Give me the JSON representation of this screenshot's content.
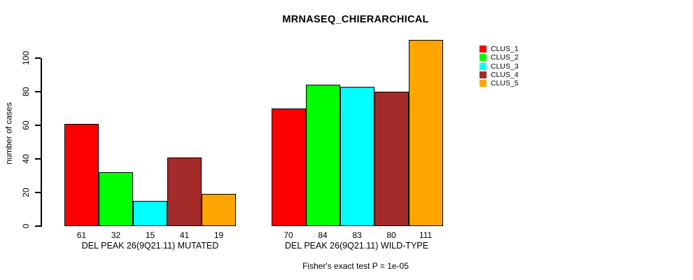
{
  "title": "MRNASEQ_CHIERARCHICAL",
  "footer": "Fisher's exact test P = 1e-05",
  "y_axis": {
    "label": "number of cases",
    "ticks": [
      0,
      20,
      40,
      60,
      80,
      100
    ]
  },
  "legend": {
    "items": [
      {
        "label": "CLUS_1",
        "color": "#FF0000"
      },
      {
        "label": "CLUS_2",
        "color": "#00FF00"
      },
      {
        "label": "CLUS_3",
        "color": "#00FFFF"
      },
      {
        "label": "CLUS_4",
        "color": "#A52A2A"
      },
      {
        "label": "CLUS_5",
        "color": "#FFA500"
      }
    ]
  },
  "chart_data": {
    "type": "bar",
    "title": "MRNASEQ_CHIERARCHICAL",
    "xlabel": "",
    "ylabel": "number of cases",
    "ylim": [
      0,
      100
    ],
    "yticks": [
      0,
      20,
      40,
      60,
      80,
      100
    ],
    "grid": false,
    "legend_position": "right",
    "series_labels": [
      "CLUS_1",
      "CLUS_2",
      "CLUS_3",
      "CLUS_4",
      "CLUS_5"
    ],
    "series_colors": [
      "#FF0000",
      "#00FF00",
      "#00FFFF",
      "#A52A2A",
      "#FFA500"
    ],
    "groups": [
      {
        "label": "DEL PEAK 26(9Q21.11) MUTATED",
        "values": [
          61,
          32,
          15,
          41,
          19
        ]
      },
      {
        "label": "DEL PEAK 26(9Q21.11) WILD-TYPE",
        "values": [
          70,
          84,
          83,
          80,
          111
        ]
      }
    ],
    "bar_value_labels_shown": true,
    "annotation": "Fisher's exact test P = 1e-05"
  }
}
